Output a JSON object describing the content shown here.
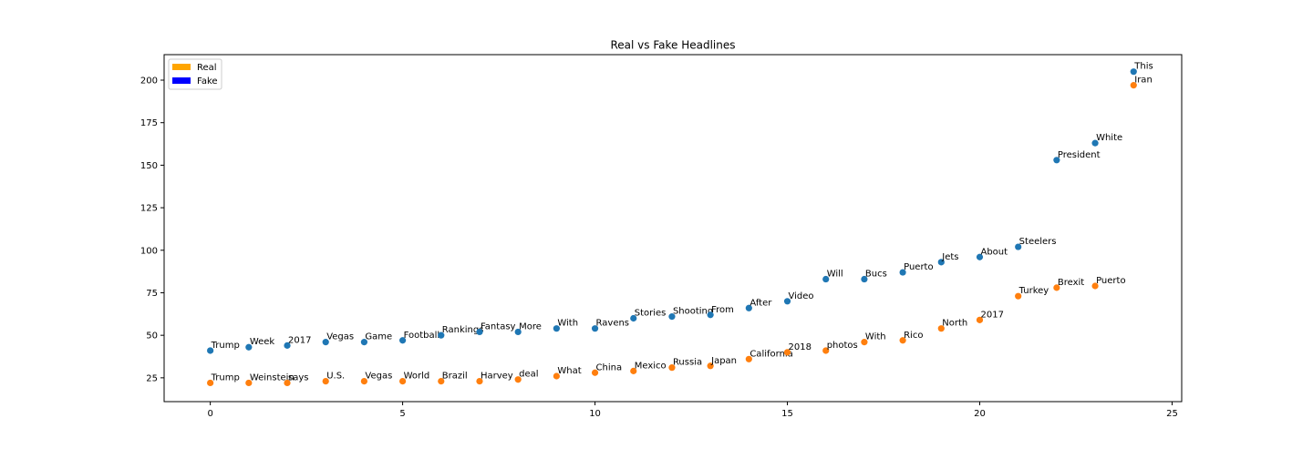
{
  "chart_data": {
    "type": "scatter",
    "title": "Real vs Fake Headlines",
    "xlabel": "",
    "ylabel": "",
    "xlim": [
      -1.2,
      25.25
    ],
    "ylim": [
      11,
      215
    ],
    "xticks": [
      0,
      5,
      10,
      15,
      20,
      25
    ],
    "yticks": [
      25,
      50,
      75,
      100,
      125,
      150,
      175,
      200
    ],
    "grid": false,
    "legend": {
      "placement": "top-left",
      "entries": [
        {
          "label": "Real",
          "color": "#ffa500"
        },
        {
          "label": "Fake",
          "color": "#0000ff"
        }
      ]
    },
    "series": [
      {
        "color": "#1f77b4",
        "points": [
          {
            "x": 0,
            "y": 41,
            "label": "Trump"
          },
          {
            "x": 1,
            "y": 43,
            "label": "Week"
          },
          {
            "x": 2,
            "y": 44,
            "label": "2017"
          },
          {
            "x": 3,
            "y": 46,
            "label": "Vegas"
          },
          {
            "x": 4,
            "y": 46,
            "label": "Game"
          },
          {
            "x": 5,
            "y": 47,
            "label": "Football"
          },
          {
            "x": 6,
            "y": 50,
            "label": "Rankings"
          },
          {
            "x": 7,
            "y": 52,
            "label": "Fantasy"
          },
          {
            "x": 8,
            "y": 52,
            "label": "More"
          },
          {
            "x": 9,
            "y": 54,
            "label": "With"
          },
          {
            "x": 10,
            "y": 54,
            "label": "Ravens"
          },
          {
            "x": 11,
            "y": 60,
            "label": "Stories"
          },
          {
            "x": 12,
            "y": 61,
            "label": "Shooting"
          },
          {
            "x": 13,
            "y": 62,
            "label": "From"
          },
          {
            "x": 14,
            "y": 66,
            "label": "After"
          },
          {
            "x": 15,
            "y": 70,
            "label": "Video"
          },
          {
            "x": 16,
            "y": 83,
            "label": "Will"
          },
          {
            "x": 17,
            "y": 83,
            "label": "Bucs"
          },
          {
            "x": 18,
            "y": 87,
            "label": "Puerto"
          },
          {
            "x": 19,
            "y": 93,
            "label": "Jets"
          },
          {
            "x": 20,
            "y": 96,
            "label": "About"
          },
          {
            "x": 21,
            "y": 102,
            "label": "Steelers"
          },
          {
            "x": 22,
            "y": 153,
            "label": "President"
          },
          {
            "x": 23,
            "y": 163,
            "label": "White"
          },
          {
            "x": 24,
            "y": 205,
            "label": "This"
          }
        ]
      },
      {
        "color": "#ff7f0e",
        "points": [
          {
            "x": 0,
            "y": 22,
            "label": "Trump"
          },
          {
            "x": 1,
            "y": 22,
            "label": "Weinstein"
          },
          {
            "x": 2,
            "y": 22,
            "label": "says"
          },
          {
            "x": 3,
            "y": 23,
            "label": "U.S."
          },
          {
            "x": 4,
            "y": 23,
            "label": "Vegas"
          },
          {
            "x": 5,
            "y": 23,
            "label": "World"
          },
          {
            "x": 6,
            "y": 23,
            "label": "Brazil"
          },
          {
            "x": 7,
            "y": 23,
            "label": "Harvey"
          },
          {
            "x": 8,
            "y": 24,
            "label": "deal"
          },
          {
            "x": 9,
            "y": 26,
            "label": "What"
          },
          {
            "x": 10,
            "y": 28,
            "label": "China"
          },
          {
            "x": 11,
            "y": 29,
            "label": "Mexico"
          },
          {
            "x": 12,
            "y": 31,
            "label": "Russia"
          },
          {
            "x": 13,
            "y": 32,
            "label": "Japan"
          },
          {
            "x": 14,
            "y": 36,
            "label": "California"
          },
          {
            "x": 15,
            "y": 40,
            "label": "2018"
          },
          {
            "x": 16,
            "y": 41,
            "label": "photos"
          },
          {
            "x": 17,
            "y": 46,
            "label": "With"
          },
          {
            "x": 18,
            "y": 47,
            "label": "Rico"
          },
          {
            "x": 19,
            "y": 54,
            "label": "North"
          },
          {
            "x": 20,
            "y": 59,
            "label": "2017"
          },
          {
            "x": 21,
            "y": 73,
            "label": "Turkey"
          },
          {
            "x": 22,
            "y": 78,
            "label": "Brexit"
          },
          {
            "x": 23,
            "y": 79,
            "label": "Puerto"
          },
          {
            "x": 24,
            "y": 197,
            "label": "Iran"
          }
        ]
      }
    ]
  }
}
